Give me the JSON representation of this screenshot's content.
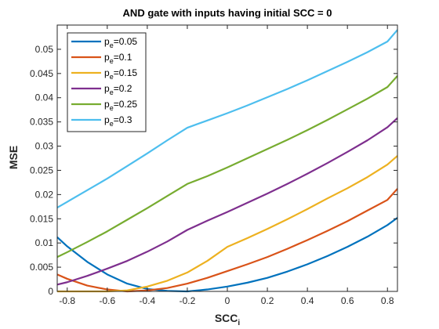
{
  "chart_data": {
    "type": "line",
    "title": "AND gate with inputs having initial SCC = 0",
    "xlabel": {
      "main": "SCC",
      "sub": "i"
    },
    "ylabel": "MSE",
    "xlim": [
      -0.85,
      0.85
    ],
    "ylim": [
      0,
      0.055
    ],
    "xticks": [
      -0.8,
      -0.6,
      -0.4,
      -0.2,
      0,
      0.2,
      0.4,
      0.6,
      0.8
    ],
    "xtick_labels": [
      "-0.8",
      "-0.6",
      "-0.4",
      "-0.2",
      "0",
      "0.2",
      "0.4",
      "0.6",
      "0.8"
    ],
    "yticks": [
      0,
      0.005,
      0.01,
      0.015,
      0.02,
      0.025,
      0.03,
      0.035,
      0.04,
      0.045,
      0.05
    ],
    "ytick_labels": [
      "0",
      "0.005",
      "0.01",
      "0.015",
      "0.02",
      "0.025",
      "0.03",
      "0.035",
      "0.04",
      "0.045",
      "0.05"
    ],
    "grid": false,
    "legend_position": "top-left",
    "x": [
      -0.85,
      -0.8,
      -0.7,
      -0.6,
      -0.5,
      -0.4,
      -0.3,
      -0.2,
      -0.1,
      0,
      0.1,
      0.2,
      0.3,
      0.4,
      0.5,
      0.6,
      0.7,
      0.8,
      0.85
    ],
    "series": [
      {
        "name": {
          "base": "p",
          "sub": "e",
          "rest": "=0.05"
        },
        "color": "#0072BD",
        "values": [
          0.0112,
          0.0093,
          0.0061,
          0.0035,
          0.0016,
          0.0005,
          0.0001,
          0.0,
          0.0004,
          0.001,
          0.0018,
          0.0028,
          0.0041,
          0.0056,
          0.0073,
          0.0092,
          0.0113,
          0.0137,
          0.0152
        ]
      },
      {
        "name": {
          "base": "p",
          "sub": "e",
          "rest": "=0.1"
        },
        "color": "#D95319",
        "values": [
          0.0035,
          0.0026,
          0.0012,
          0.0004,
          0.0,
          0.0002,
          0.0007,
          0.0016,
          0.0028,
          0.0042,
          0.0056,
          0.0071,
          0.0088,
          0.0106,
          0.0125,
          0.0145,
          0.0167,
          0.0189,
          0.0212
        ]
      },
      {
        "name": {
          "base": "p",
          "sub": "e",
          "rest": "=0.15"
        },
        "color": "#EDB120",
        "values": [
          0.0,
          0.0,
          0.0,
          0.0,
          0.0002,
          0.001,
          0.0022,
          0.0039,
          0.0063,
          0.0092,
          0.011,
          0.0129,
          0.0149,
          0.017,
          0.0192,
          0.0213,
          0.0236,
          0.0262,
          0.028
        ]
      },
      {
        "name": {
          "base": "p",
          "sub": "e",
          "rest": "=0.2"
        },
        "color": "#7E2F8E",
        "values": [
          0.0014,
          0.0019,
          0.0032,
          0.0047,
          0.0063,
          0.0082,
          0.0103,
          0.0127,
          0.0146,
          0.0164,
          0.0183,
          0.0202,
          0.0222,
          0.0243,
          0.0265,
          0.0288,
          0.0312,
          0.0339,
          0.0358
        ]
      },
      {
        "name": {
          "base": "p",
          "sub": "e",
          "rest": "=0.25"
        },
        "color": "#77AC30",
        "values": [
          0.0071,
          0.0081,
          0.0102,
          0.0124,
          0.0148,
          0.0172,
          0.0197,
          0.0222,
          0.0238,
          0.0256,
          0.0275,
          0.0294,
          0.0313,
          0.0333,
          0.0354,
          0.0376,
          0.0398,
          0.0422,
          0.0445
        ]
      },
      {
        "name": {
          "base": "p",
          "sub": "e",
          "rest": "=0.3"
        },
        "color": "#4DBEEE",
        "values": [
          0.0173,
          0.0185,
          0.0209,
          0.0233,
          0.0259,
          0.0285,
          0.0312,
          0.0338,
          0.0353,
          0.0368,
          0.0384,
          0.0401,
          0.0418,
          0.0436,
          0.0455,
          0.0474,
          0.0494,
          0.0516,
          0.054
        ]
      }
    ]
  }
}
